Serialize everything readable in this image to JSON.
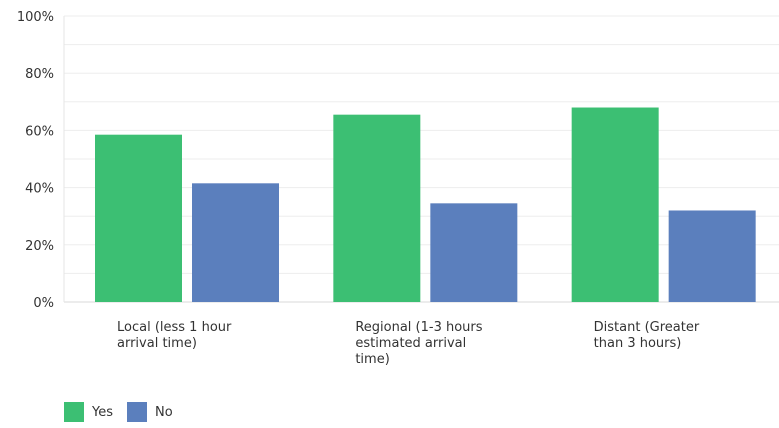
{
  "chart_data": {
    "type": "bar",
    "categories": [
      "Local (less 1 hour arrival time)",
      "Regional (1-3 hours estimated arrival time)",
      "Distant (Greater than 3 hours)"
    ],
    "category_lines": [
      [
        "Local (less 1 hour",
        "arrival time)"
      ],
      [
        "Regional (1-3 hours",
        "estimated arrival",
        "time)"
      ],
      [
        "Distant (Greater",
        "than 3 hours)"
      ]
    ],
    "series": [
      {
        "name": "Yes",
        "values": [
          58.5,
          65.5,
          68
        ],
        "color": "#3cbf73"
      },
      {
        "name": "No",
        "values": [
          41.5,
          34.5,
          32
        ],
        "color": "#5b7fbd"
      }
    ],
    "ylim": [
      0,
      100
    ],
    "yticks": [
      "0%",
      "20%",
      "40%",
      "60%",
      "80%",
      "100%"
    ],
    "ytick_values": [
      0,
      20,
      40,
      60,
      80,
      100
    ],
    "grid": true,
    "legend_position": "bottom-left",
    "title": "",
    "xlabel": "",
    "ylabel": ""
  }
}
